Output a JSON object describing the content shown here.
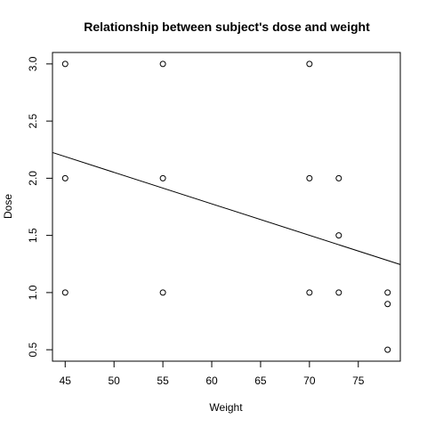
{
  "chart_data": {
    "type": "scatter",
    "title": "Relationship between subject's dose and weight",
    "xlabel": "Weight",
    "ylabel": "Dose",
    "xlim": [
      43.7,
      79.3
    ],
    "ylim": [
      0.4,
      3.1
    ],
    "xticks": [
      45,
      50,
      55,
      60,
      65,
      70,
      75
    ],
    "yticks": [
      0.5,
      1.0,
      1.5,
      2.0,
      2.5,
      3.0
    ],
    "xtick_labels": [
      "45",
      "50",
      "55",
      "60",
      "65",
      "70",
      "75"
    ],
    "ytick_labels": [
      "0.5",
      "1.0",
      "1.5",
      "2.0",
      "2.5",
      "3.0"
    ],
    "grid": false,
    "points": [
      {
        "x": 45,
        "y": 3.0
      },
      {
        "x": 45,
        "y": 2.0
      },
      {
        "x": 45,
        "y": 1.0
      },
      {
        "x": 55,
        "y": 3.0
      },
      {
        "x": 55,
        "y": 2.0
      },
      {
        "x": 55,
        "y": 1.0
      },
      {
        "x": 70,
        "y": 3.0
      },
      {
        "x": 70,
        "y": 2.0
      },
      {
        "x": 70,
        "y": 1.0
      },
      {
        "x": 73,
        "y": 2.0
      },
      {
        "x": 73,
        "y": 1.5
      },
      {
        "x": 73,
        "y": 1.0
      },
      {
        "x": 78,
        "y": 1.0
      },
      {
        "x": 78,
        "y": 0.9
      },
      {
        "x": 78,
        "y": 0.5
      }
    ],
    "trend_line": {
      "x": [
        43.7,
        79.3
      ],
      "y": [
        2.225,
        1.245
      ]
    }
  }
}
